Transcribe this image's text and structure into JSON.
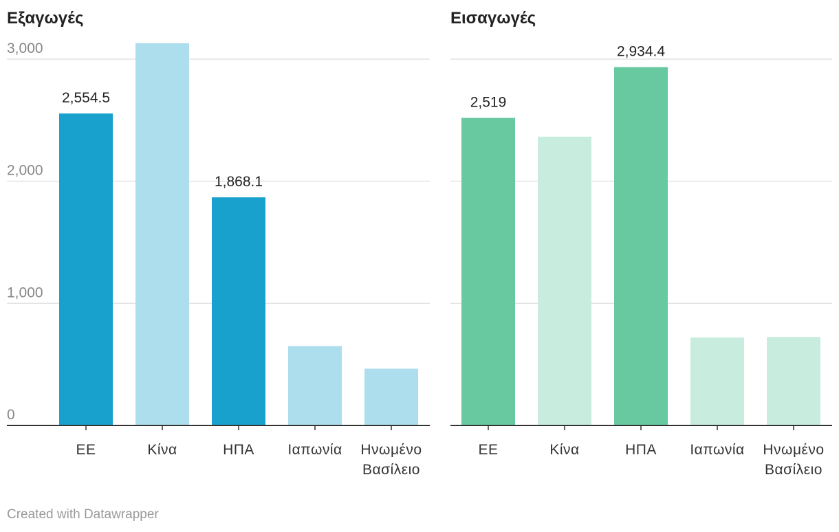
{
  "footer": "Created with Datawrapper",
  "chart_data": [
    {
      "type": "bar",
      "title": "Εξαγωγές",
      "categories": [
        [
          "ΕΕ"
        ],
        [
          "Κίνα"
        ],
        [
          "ΗΠΑ"
        ],
        [
          "Ιαπωνία"
        ],
        [
          "Ηνωμένο",
          "Βασίλειο"
        ]
      ],
      "values": [
        2554.5,
        3130,
        1868.1,
        650,
        465
      ],
      "data_labels": [
        "2,554.5",
        null,
        "1,868.1",
        null,
        null
      ],
      "highlight": [
        true,
        false,
        true,
        false,
        false
      ],
      "y_ticks": [
        0,
        1000,
        2000,
        3000
      ],
      "y_tick_labels": [
        "0",
        "1,000",
        "2,000",
        "3,000"
      ],
      "ylim": [
        0,
        3000
      ],
      "grid": true,
      "colors": {
        "highlight": "#18a1cd",
        "muted": "#addeed"
      }
    },
    {
      "type": "bar",
      "title": "Εισαγωγές",
      "categories": [
        [
          "ΕΕ"
        ],
        [
          "Κίνα"
        ],
        [
          "ΗΠΑ"
        ],
        [
          "Ιαπωνία"
        ],
        [
          "Ηνωμένο",
          "Βασίλειο"
        ]
      ],
      "values": [
        2519,
        2365,
        2934.4,
        720,
        725
      ],
      "data_labels": [
        "2,519",
        null,
        "2,934.4",
        null,
        null
      ],
      "highlight": [
        true,
        false,
        true,
        false,
        false
      ],
      "y_ticks": [
        0,
        1000,
        2000,
        3000
      ],
      "y_tick_labels": [
        "",
        "",
        "",
        ""
      ],
      "ylim": [
        0,
        3000
      ],
      "grid": true,
      "colors": {
        "highlight": "#68c9a0",
        "muted": "#c8ecdd"
      }
    }
  ]
}
